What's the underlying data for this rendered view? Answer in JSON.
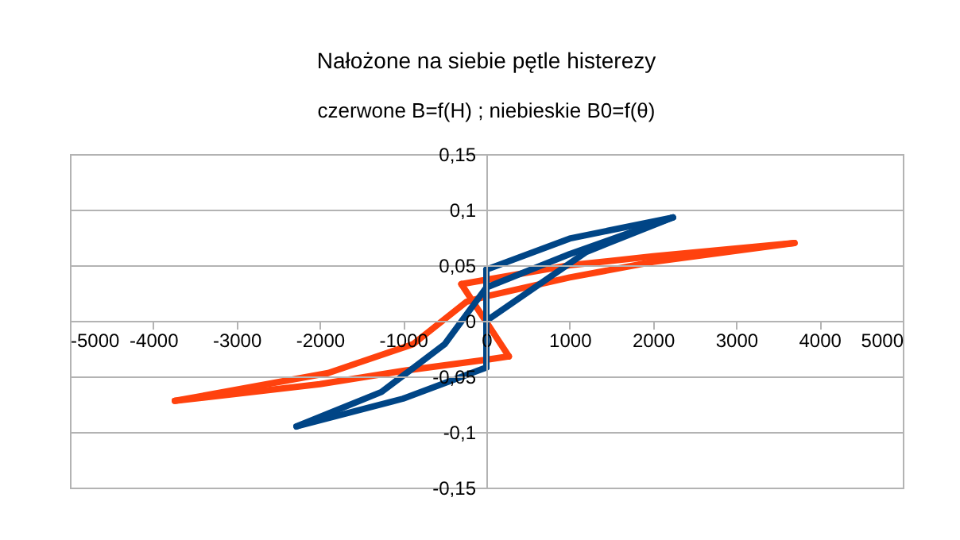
{
  "chart_data": {
    "type": "line",
    "title": "Nałożone na siebie pętle histerezy",
    "subtitle": "czerwone B=f(H) ; niebieskie B0=f(θ)",
    "xlim": [
      -5000,
      5000
    ],
    "xticks": [
      -5000,
      -4000,
      -3000,
      -2000,
      -1000,
      0,
      1000,
      2000,
      3000,
      4000,
      5000
    ],
    "ylim": [
      -0.15,
      0.15
    ],
    "yticks": [
      {
        "value": -0.15,
        "label": "-0,15"
      },
      {
        "value": -0.1,
        "label": "-0,1"
      },
      {
        "value": -0.05,
        "label": "-0,05"
      },
      0,
      {
        "value": 0.05,
        "label": "0,05"
      },
      {
        "value": 0.1,
        "label": "0,1"
      },
      {
        "value": 0.15,
        "label": "0,15"
      }
    ],
    "grid": "y",
    "marker": "none",
    "series": [
      {
        "color": "#ff420e",
        "x": [
          -3740,
          -1900,
          -880,
          -240,
          0,
          1000,
          2000,
          3700
        ],
        "values": [
          -0.072,
          -0.047,
          -0.021,
          0.017,
          0.022,
          0.039,
          0.053,
          0.07
        ]
      },
      {
        "color": "#ff420e",
        "x": [
          3700,
          2000,
          1000,
          -300
        ],
        "values": [
          0.07,
          0.058,
          0.05,
          0.033
        ]
      },
      {
        "color": "#ff420e",
        "x": [
          -300,
          270
        ],
        "values": [
          0.033,
          -0.032
        ]
      },
      {
        "color": "#ff420e",
        "x": [
          270,
          0,
          -1000,
          -2000,
          -3740
        ],
        "values": [
          -0.032,
          -0.035,
          -0.045,
          -0.057,
          -0.072
        ]
      },
      {
        "color": "#004586",
        "x": [
          0,
          1200,
          2240
        ],
        "values": [
          0,
          0.062,
          0.093
        ]
      },
      {
        "color": "#004586",
        "x": [
          2240,
          1000,
          0
        ],
        "values": [
          0.093,
          0.074,
          0.046
        ]
      },
      {
        "color": "#004586",
        "x": [
          0,
          0
        ],
        "values": [
          0.046,
          -0.042
        ]
      },
      {
        "color": "#004586",
        "x": [
          0,
          -1000,
          -2280
        ],
        "values": [
          -0.042,
          -0.07,
          -0.095
        ]
      },
      {
        "color": "#004586",
        "x": [
          -2280,
          -1260,
          -500,
          0,
          1000,
          2240
        ],
        "values": [
          -0.095,
          -0.064,
          -0.021,
          0.03,
          0.06,
          0.093
        ]
      }
    ]
  }
}
